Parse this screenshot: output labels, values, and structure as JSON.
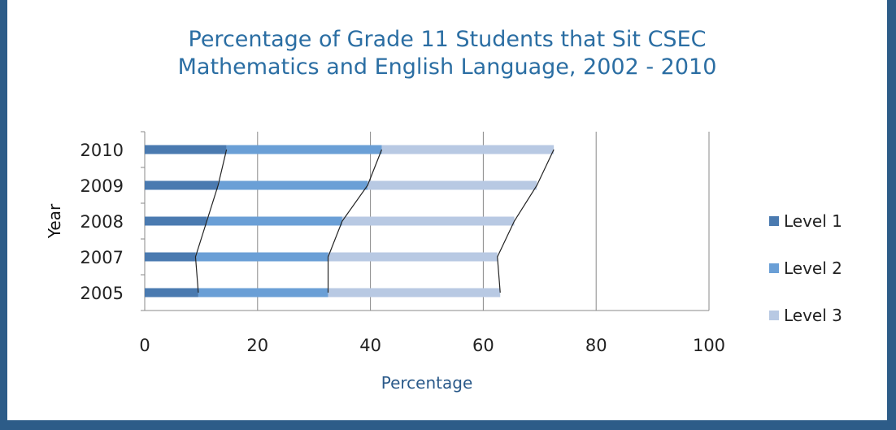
{
  "chart_data": {
    "type": "bar",
    "orientation": "horizontal",
    "stacked": true,
    "title_lines": [
      "Percentage of Grade 11 Students that Sit CSEC",
      "Mathematics and English Language, 2002 - 2010"
    ],
    "xlabel": "Percentage",
    "ylabel": "Year",
    "xlim": [
      0,
      100
    ],
    "x_ticks": [
      0,
      20,
      40,
      60,
      80,
      100
    ],
    "categories": [
      "2005",
      "2007",
      "2008",
      "2009",
      "2010"
    ],
    "series": [
      {
        "name": "Level 1",
        "values": [
          9.5,
          9.0,
          11.0,
          13.0,
          14.5
        ],
        "color": "#4a7ab0"
      },
      {
        "name": "Level 2",
        "values": [
          23.0,
          23.5,
          24.0,
          26.5,
          27.5
        ],
        "color": "#6a9fd6"
      },
      {
        "name": "Level 3",
        "values": [
          30.5,
          30.0,
          30.5,
          30.0,
          30.5
        ],
        "color": "#b8c9e3"
      }
    ],
    "series_lines": true,
    "grid": "vertical",
    "legend_position": "right"
  },
  "colors": {
    "background": "#2d5c88",
    "title": "#2b6ea3",
    "xlabel": "#2b5a8a",
    "text": "#222222",
    "grid": "#888888",
    "series_line": "#222222"
  }
}
